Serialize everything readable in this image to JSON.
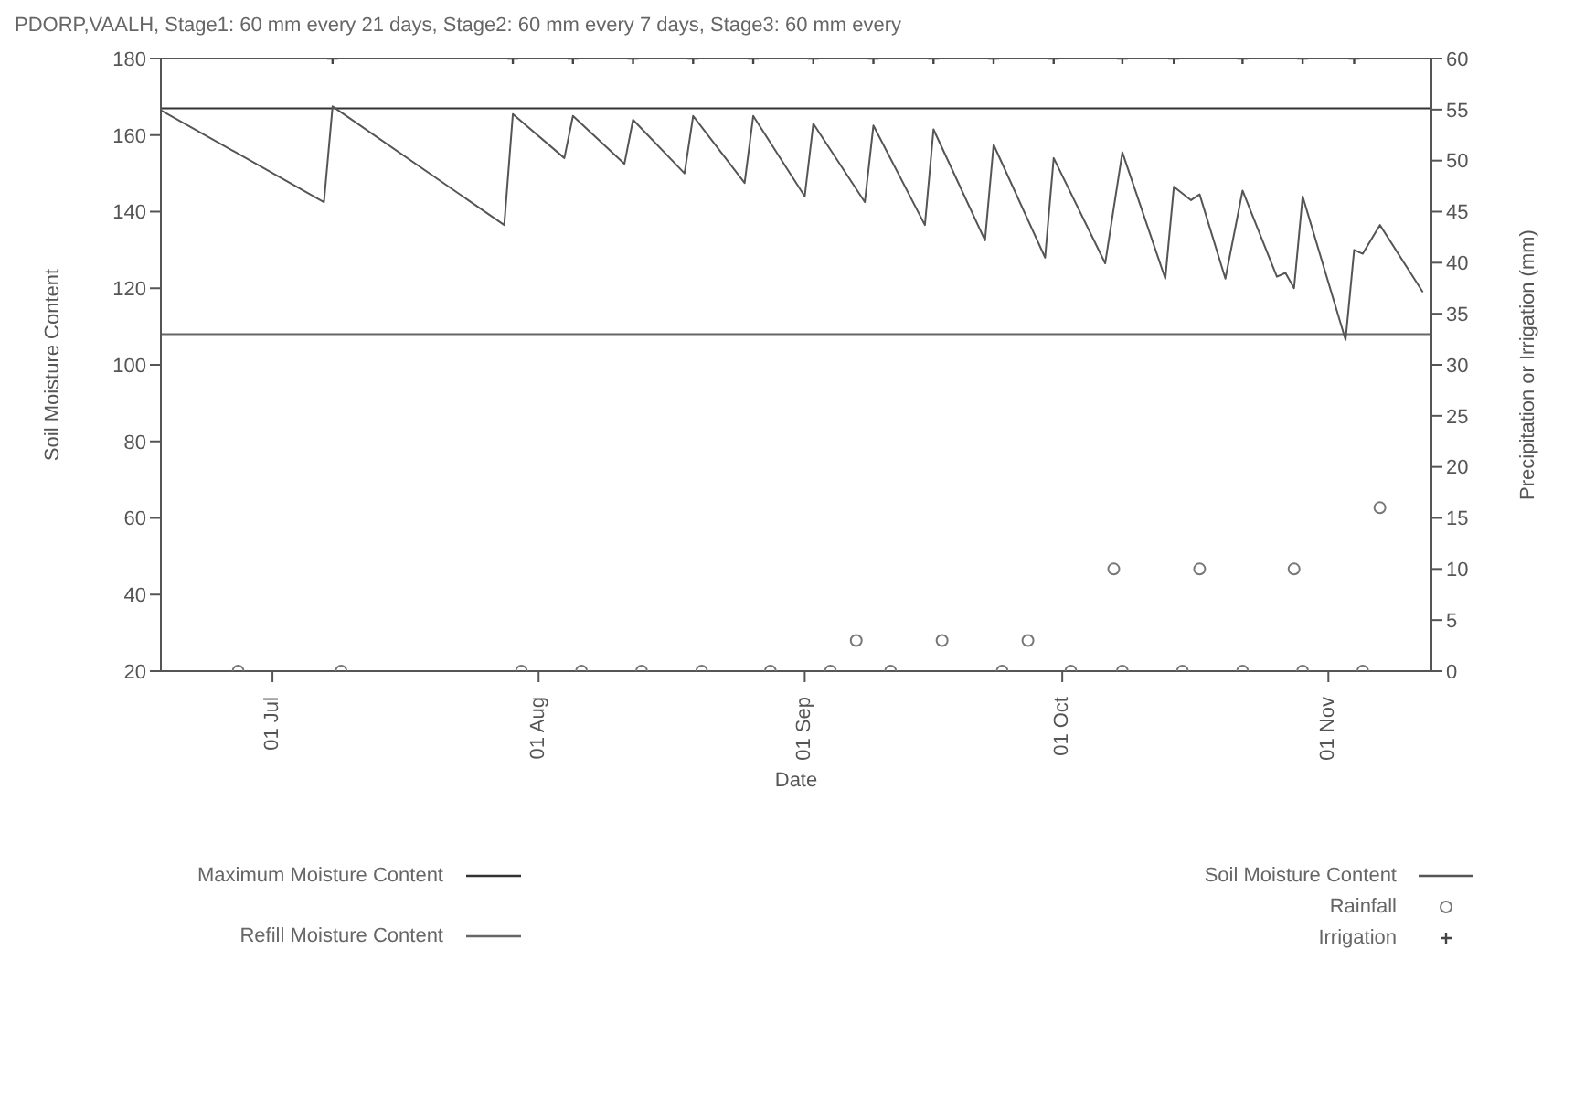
{
  "chart_data": {
    "type": "line",
    "title": "PDORP,VAALH,  Stage1: 60 mm every 21 days, Stage2: 60 mm every  7 days, Stage3: 60 mm every",
    "xlabel": "Date",
    "ylabel": "Soil Moisture Content",
    "y2label": "Precipitation or Irrigation (mm)",
    "xlim": [
      "--06-18",
      "--11-13"
    ],
    "xticks": [
      {
        "value": "--07-01",
        "label": "01 Jul"
      },
      {
        "value": "--08-01",
        "label": "01 Aug"
      },
      {
        "value": "--09-01",
        "label": "01 Sep"
      },
      {
        "value": "--10-01",
        "label": "01 Oct"
      },
      {
        "value": "--11-01",
        "label": "01 Nov"
      }
    ],
    "ylim": [
      20,
      180
    ],
    "yticks": [
      20,
      40,
      60,
      80,
      100,
      120,
      140,
      160,
      180
    ],
    "y2lim": [
      0,
      60
    ],
    "y2ticks": [
      0,
      5,
      10,
      15,
      20,
      25,
      30,
      35,
      40,
      45,
      50,
      55,
      60
    ],
    "legend": "bottom",
    "series": [
      {
        "name": "Maximum Moisture Content",
        "color": "#333333",
        "marker": "none",
        "x": [
          "--06-18",
          "--11-13"
        ],
        "values": [
          167,
          167
        ]
      },
      {
        "name": "Refill Moisture Content",
        "color": "#666666",
        "marker": "none",
        "x": [
          "--06-18",
          "--11-13"
        ],
        "values": [
          108,
          108
        ]
      },
      {
        "name": "Soil Moisture Content",
        "color": "#555555",
        "marker": "none",
        "x": [
          "--06-18",
          "--07-07",
          "--07-08",
          "--07-28",
          "--07-29",
          "--08-04",
          "--08-05",
          "--08-11",
          "--08-12",
          "--08-18",
          "--08-19",
          "--08-25",
          "--08-26",
          "--09-01",
          "--09-02",
          "--09-08",
          "--09-09",
          "--09-15",
          "--09-16",
          "--09-22",
          "--09-23",
          "--09-29",
          "--09-30",
          "--10-06",
          "--10-08",
          "--10-13",
          "--10-14",
          "--10-16",
          "--10-17",
          "--10-20",
          "--10-22",
          "--10-26",
          "--10-27",
          "--10-28",
          "--10-29",
          "--11-03",
          "--11-04",
          "--11-05",
          "--11-07",
          "--11-12"
        ],
        "values": [
          166.5,
          142.5,
          167.5,
          136.5,
          165.5,
          154,
          165,
          152.5,
          164,
          150,
          165,
          147.5,
          165,
          144,
          163,
          142.5,
          162.5,
          136.5,
          161.5,
          132.5,
          157.5,
          128,
          154,
          126.5,
          155.5,
          122.5,
          146.5,
          143,
          144.5,
          122.5,
          145.5,
          123,
          124,
          120,
          144,
          106.5,
          130,
          129,
          136.5,
          119
        ]
      },
      {
        "name": "Rainfall",
        "type": "scatter",
        "axis": "y2",
        "color": "#777777",
        "marker": "circle",
        "x": [
          "--06-27",
          "--07-09",
          "--07-30",
          "--08-06",
          "--08-13",
          "--08-20",
          "--08-28",
          "--09-04",
          "--09-07",
          "--09-11",
          "--09-17",
          "--09-24",
          "--09-27",
          "--10-02",
          "--10-07",
          "--10-08",
          "--10-15",
          "--10-17",
          "--10-22",
          "--10-28",
          "--10-29",
          "--11-05",
          "--11-07"
        ],
        "values": [
          0,
          0,
          0,
          0,
          0,
          0,
          0,
          0,
          3,
          0,
          3,
          0,
          3,
          0,
          10,
          0,
          0,
          10,
          0,
          10,
          0,
          0,
          16
        ]
      },
      {
        "name": "Irrigation",
        "type": "scatter",
        "axis": "y2",
        "color": "#444444",
        "marker": "cross",
        "x": [
          "--07-08",
          "--07-29",
          "--08-05",
          "--08-12",
          "--08-19",
          "--08-26",
          "--09-02",
          "--09-09",
          "--09-16",
          "--09-23",
          "--09-30",
          "--10-08",
          "--10-14",
          "--10-22",
          "--10-29",
          "--11-04"
        ],
        "values": [
          60,
          60,
          60,
          60,
          60,
          60,
          60,
          60,
          60,
          60,
          60,
          60,
          60,
          60,
          60,
          60
        ]
      }
    ]
  }
}
